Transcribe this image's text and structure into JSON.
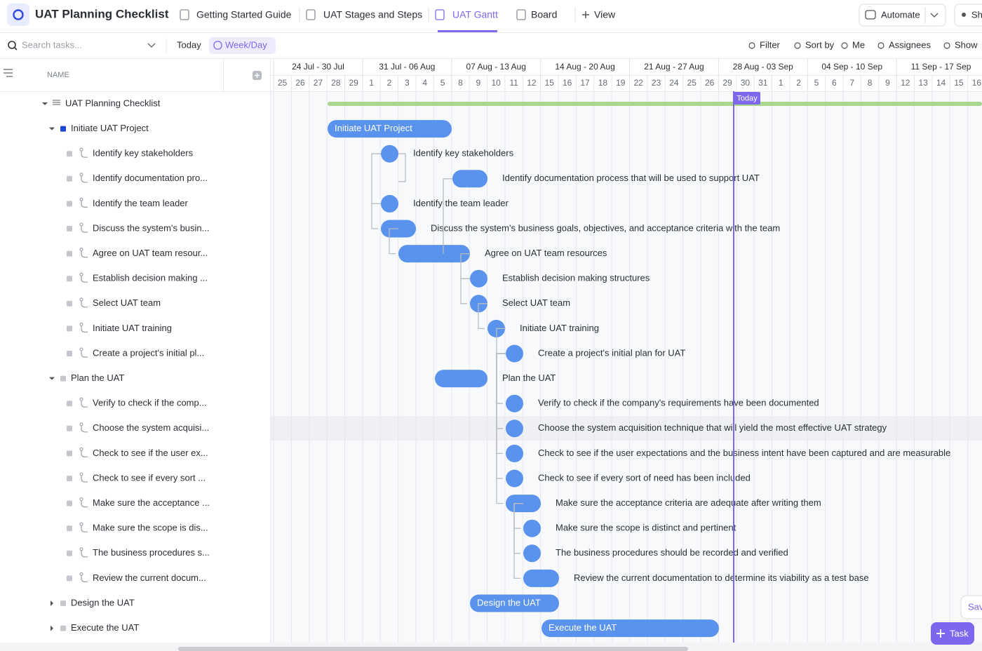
{
  "header": {
    "title": "UAT Planning Checklist",
    "tabs": [
      "Getting Started Guide",
      "UAT Stages and Steps",
      "UAT Gantt",
      "Board",
      "View"
    ],
    "automate": "Automate",
    "share": "Sh"
  },
  "toolbar": {
    "search": "Search tasks...",
    "today": "Today",
    "scale": "Week/Day",
    "filter": "Filter",
    "sort": "Sort by",
    "me": "Me",
    "assignees": "Assignees",
    "show": "Show"
  },
  "sidebar": {
    "column": "NAME"
  },
  "timeline": {
    "weeks": [
      "24 Jul - 30 Jul",
      "31 Jul - 06 Aug",
      "07 Aug - 13 Aug",
      "14 Aug - 20 Aug",
      "21 Aug - 27 Aug",
      "28 Aug - 03 Sep",
      "04 Sep - 10 Sep",
      "11 Sep - 17 Sep"
    ],
    "days": [
      25,
      26,
      27,
      28,
      29,
      1,
      2,
      3,
      4,
      5,
      8,
      9,
      10,
      11,
      12,
      15,
      16,
      17,
      18,
      19,
      22,
      23,
      24,
      25,
      26,
      29,
      30,
      31,
      1,
      2,
      5,
      6,
      7,
      8,
      9,
      12,
      13,
      14,
      15,
      16
    ],
    "today": "Today"
  },
  "rows": [
    {
      "label": "UAT Planning Checklist"
    },
    {
      "label": "Initiate UAT Project",
      "gantt_label": "Initiate UAT Project"
    },
    {
      "label": "Identify key stakeholders",
      "gantt_label": "Identify key stakeholders"
    },
    {
      "label": "Identify documentation pro...",
      "gantt_label": "Identify documentation process that will be used to support UAT"
    },
    {
      "label": "Identify the team leader",
      "gantt_label": "Identify the team leader"
    },
    {
      "label": "Discuss the system's busin...",
      "gantt_label": "Discuss the system's business goals, objectives, and acceptance criteria with the team"
    },
    {
      "label": "Agree on UAT team resour...",
      "gantt_label": "Agree on UAT team resources"
    },
    {
      "label": "Establish decision making ...",
      "gantt_label": "Establish decision making structures"
    },
    {
      "label": "Select UAT team",
      "gantt_label": "Select UAT team"
    },
    {
      "label": "Initiate UAT training",
      "gantt_label": "Initiate UAT training"
    },
    {
      "label": "Create a project's initial pl...",
      "gantt_label": "Create a project's initial plan for UAT"
    },
    {
      "label": "Plan the UAT",
      "gantt_label": "Plan the UAT"
    },
    {
      "label": "Verify to check if the comp...",
      "gantt_label": "Verify to check if the company's requirements have been documented"
    },
    {
      "label": "Choose the system acquisi...",
      "gantt_label": "Choose the system acquisition technique that will yield the most effective UAT strategy"
    },
    {
      "label": "Check to see if the user ex...",
      "gantt_label": "Check to see if the user expectations and the business intent have been captured and are measurable"
    },
    {
      "label": "Check to see if every sort ...",
      "gantt_label": "Check to see if every sort of need has been included"
    },
    {
      "label": "Make sure the acceptance ...",
      "gantt_label": "Make sure the acceptance criteria are adequate after writing them"
    },
    {
      "label": "Make sure the scope is dis...",
      "gantt_label": "Make sure the scope is distinct and pertinent"
    },
    {
      "label": "The business procedures s...",
      "gantt_label": "The business procedures should be recorded and verified"
    },
    {
      "label": "Review the current docum...",
      "gantt_label": "Review the current documentation to determine its viability as a test base"
    },
    {
      "label": "Design the UAT",
      "gantt_label": "Design the UAT"
    },
    {
      "label": "Execute the UAT",
      "gantt_label": "Execute the UAT"
    }
  ],
  "footer": {
    "task": "Task",
    "save": "Sav"
  }
}
